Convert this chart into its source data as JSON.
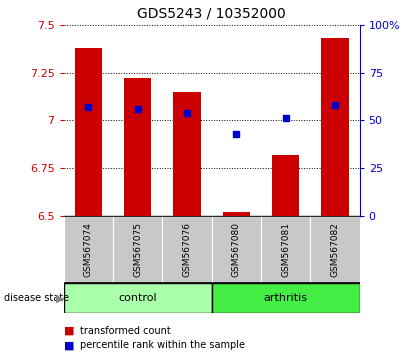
{
  "title": "GDS5243 / 10352000",
  "samples": [
    "GSM567074",
    "GSM567075",
    "GSM567076",
    "GSM567080",
    "GSM567081",
    "GSM567082"
  ],
  "bar_values": [
    7.38,
    7.22,
    7.15,
    6.52,
    6.82,
    7.43
  ],
  "bar_bottom": 6.5,
  "percentile_values": [
    7.07,
    7.06,
    7.04,
    6.93,
    7.01,
    7.08
  ],
  "ylim": [
    6.5,
    7.5
  ],
  "yticks_left": [
    6.5,
    6.75,
    7.0,
    7.25,
    7.5
  ],
  "ytick_labels_left": [
    "6.5",
    "6.75",
    "7",
    "7.25",
    "7.5"
  ],
  "right_yticks": [
    0,
    25,
    50,
    75,
    100
  ],
  "right_ytick_labels": [
    "0",
    "25",
    "50",
    "75",
    "100%"
  ],
  "bar_color": "#cc0000",
  "percentile_color": "#0000cc",
  "control_color": "#aaffaa",
  "arthritis_color": "#44ee44",
  "tick_label_bg": "#c8c8c8",
  "bar_width": 0.55,
  "n_control": 3,
  "n_arthritis": 3
}
